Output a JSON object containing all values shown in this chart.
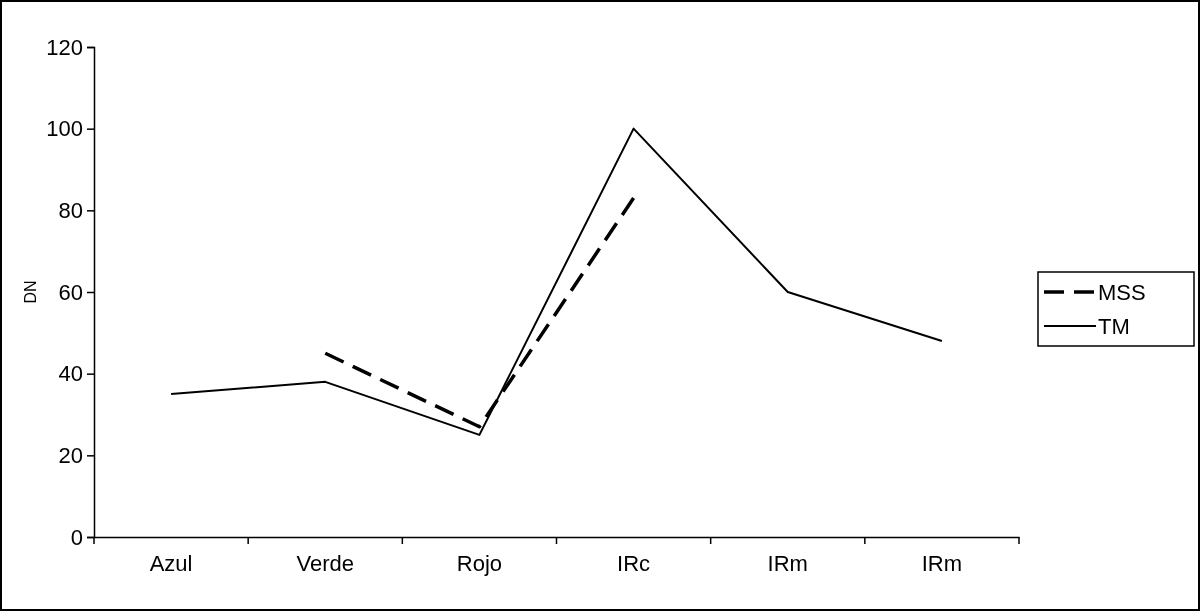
{
  "chart_data": {
    "type": "line",
    "ylabel": "DN",
    "categories": [
      "Azul",
      "Verde",
      "Rojo",
      "IRc",
      "IRm",
      "IRm"
    ],
    "ylim": [
      0,
      120
    ],
    "yticks": [
      0,
      20,
      40,
      60,
      80,
      100,
      120
    ],
    "grid": false,
    "legend": "right",
    "marker": "none",
    "series": [
      {
        "name": "MSS",
        "color": "#000000",
        "line_style": "dashed",
        "values": [
          null,
          45,
          27,
          83,
          null,
          null
        ]
      },
      {
        "name": "TM",
        "color": "#000000",
        "line_style": "solid",
        "values": [
          35,
          38,
          25,
          100,
          60,
          48
        ]
      }
    ]
  }
}
